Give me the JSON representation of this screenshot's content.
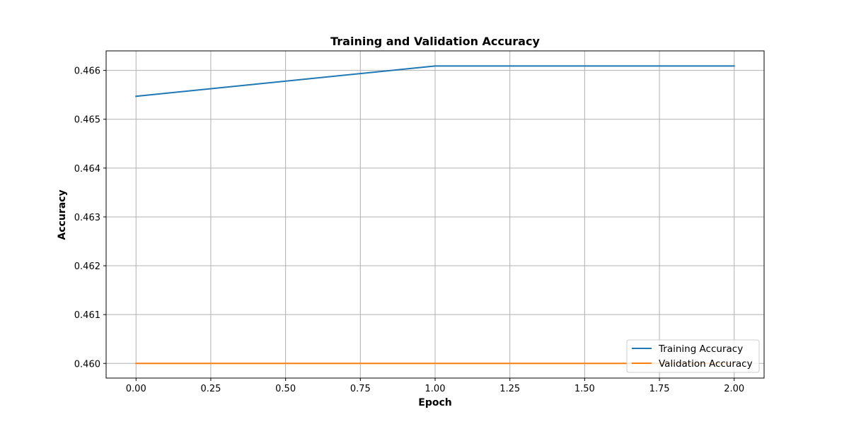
{
  "chart_data": {
    "type": "line",
    "title": "Training and Validation Accuracy",
    "xlabel": "Epoch",
    "ylabel": "Accuracy",
    "xlim": [
      -0.1,
      2.1
    ],
    "ylim": [
      0.4597,
      0.4664
    ],
    "xticks": [
      0.0,
      0.25,
      0.5,
      0.75,
      1.0,
      1.25,
      1.5,
      1.75,
      2.0
    ],
    "xtick_labels": [
      "0.00",
      "0.25",
      "0.50",
      "0.75",
      "1.00",
      "1.25",
      "1.50",
      "1.75",
      "2.00"
    ],
    "yticks": [
      0.46,
      0.461,
      0.462,
      0.463,
      0.464,
      0.465,
      0.466
    ],
    "ytick_labels": [
      "0.460",
      "0.461",
      "0.462",
      "0.463",
      "0.464",
      "0.465",
      "0.466"
    ],
    "grid": true,
    "legend_position": "lower right",
    "series": [
      {
        "name": "Training Accuracy",
        "color": "#1f77b4",
        "x": [
          0,
          1,
          2
        ],
        "y": [
          0.46547,
          0.46609,
          0.46609
        ]
      },
      {
        "name": "Validation Accuracy",
        "color": "#ff7f0e",
        "x": [
          0,
          1,
          2
        ],
        "y": [
          0.46,
          0.46,
          0.46
        ]
      }
    ]
  }
}
